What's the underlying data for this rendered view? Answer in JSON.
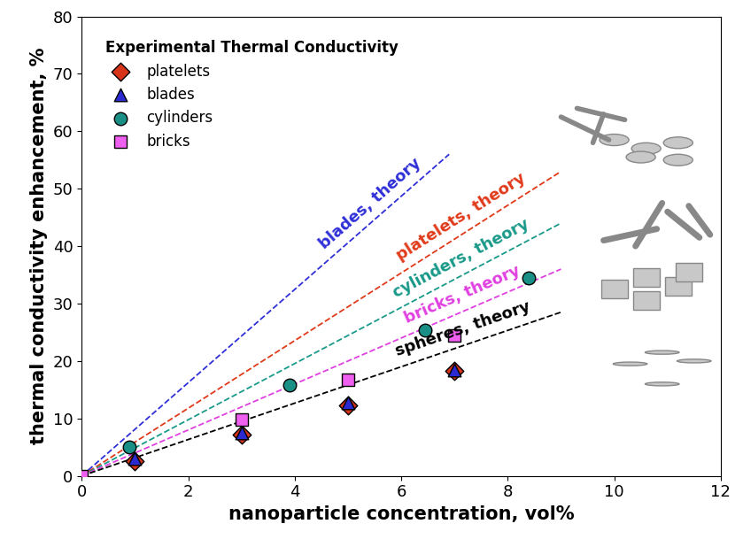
{
  "chart_data": {
    "type": "scatter",
    "x_label": "nanoparticle concentration, vol%",
    "y_label": "thermal conductivity enhancement, %",
    "legend_title": "Experimental Thermal Conductivity",
    "legend": "upper left",
    "xlim": [
      0,
      12
    ],
    "xticks": [
      0,
      2,
      4,
      6,
      8,
      10,
      12
    ],
    "ylim": [
      0,
      80
    ],
    "yticks": [
      0,
      10,
      20,
      30,
      40,
      50,
      60,
      70,
      80
    ],
    "grid": false,
    "series": [
      {
        "name": "blades, theory",
        "type": "line",
        "line_style": "dashed",
        "color": "#2f2fd8",
        "x": [
          0,
          6.9
        ],
        "values": [
          0,
          56
        ]
      },
      {
        "name": "platelets, theory",
        "type": "line",
        "line_style": "dashed",
        "color": "#e03a1a",
        "x": [
          0,
          9.0
        ],
        "values": [
          0,
          53
        ]
      },
      {
        "name": "cylinders, theory",
        "type": "line",
        "line_style": "dashed",
        "color": "#1a9a8a",
        "x": [
          0,
          9.0
        ],
        "values": [
          0,
          44
        ]
      },
      {
        "name": "bricks, theory",
        "type": "line",
        "line_style": "dashed",
        "color": "#e040e0",
        "x": [
          0,
          9.0
        ],
        "values": [
          0,
          36
        ]
      },
      {
        "name": "spheres, theory",
        "type": "line",
        "line_style": "dashed",
        "color": "#000000",
        "x": [
          0,
          9.0
        ],
        "values": [
          0,
          28.5
        ]
      },
      {
        "name": "platelets",
        "type": "scatter",
        "marker": "diamond",
        "color": "#d8341a",
        "x": [
          1,
          3,
          5,
          7
        ],
        "values": [
          2.5,
          7.2,
          12.2,
          18.3
        ]
      },
      {
        "name": "blades",
        "type": "scatter",
        "marker": "triangle",
        "color": "#2a2ad0",
        "x": [
          1,
          3,
          5,
          7
        ],
        "values": [
          3.0,
          7.5,
          12.8,
          18.5
        ]
      },
      {
        "name": "cylinders",
        "type": "scatter",
        "marker": "circle",
        "color": "#1a8f86",
        "x": [
          0.9,
          3.9,
          6.45,
          8.4
        ],
        "values": [
          5.0,
          15.8,
          25.4,
          34.5
        ]
      },
      {
        "name": "bricks",
        "type": "scatter",
        "marker": "square",
        "color": "#f060f0",
        "x": [
          0,
          3,
          5,
          7
        ],
        "values": [
          0,
          9.8,
          16.7,
          24.5
        ]
      }
    ]
  }
}
